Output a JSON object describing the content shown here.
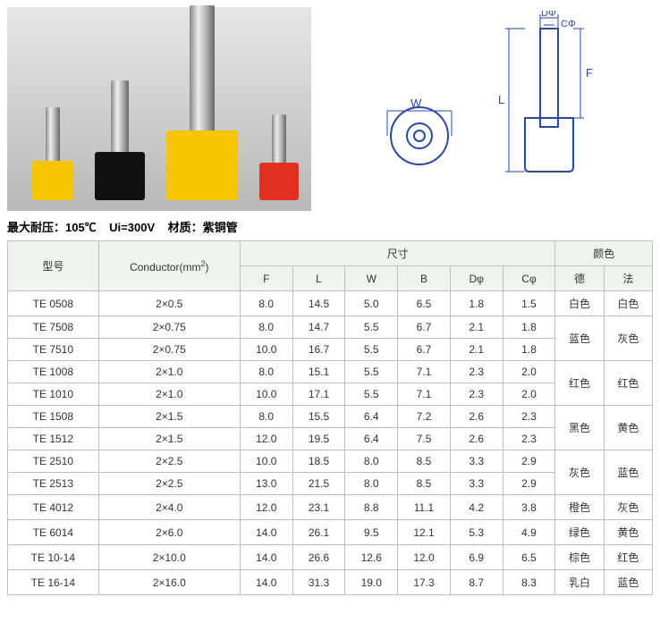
{
  "caption_parts": {
    "p1": "最大耐压：105℃",
    "p2": "Ui=300V",
    "p3": "材质：紫铜管"
  },
  "headers": {
    "model": "型号",
    "conductor_label": "Conductor(mm",
    "conductor_sup": "2",
    "conductor_close": ")",
    "dimensions": "尺寸",
    "color": "颜色",
    "F": "F",
    "L": "L",
    "W": "W",
    "B": "B",
    "Dphi": "Dφ",
    "Cphi": "Cφ",
    "de": "德",
    "fa": "法"
  },
  "diagram_labels": {
    "W": "W",
    "L": "L",
    "F": "F",
    "Dphi": "DΦ",
    "Cphi": "CΦ"
  },
  "rows": [
    {
      "model": "TE 0508",
      "cond": "2×0.5",
      "F": "8.0",
      "L": "14.5",
      "W": "5.0",
      "B": "6.5",
      "D": "1.8",
      "C": "1.5"
    },
    {
      "model": "TE 7508",
      "cond": "2×0.75",
      "F": "8.0",
      "L": "14.7",
      "W": "5.5",
      "B": "6.7",
      "D": "2.1",
      "C": "1.8"
    },
    {
      "model": "TE 7510",
      "cond": "2×0.75",
      "F": "10.0",
      "L": "16.7",
      "W": "5.5",
      "B": "6.7",
      "D": "2.1",
      "C": "1.8"
    },
    {
      "model": "TE 1008",
      "cond": "2×1.0",
      "F": "8.0",
      "L": "15.1",
      "W": "5.5",
      "B": "7.1",
      "D": "2.3",
      "C": "2.0"
    },
    {
      "model": "TE 1010",
      "cond": "2×1.0",
      "F": "10.0",
      "L": "17.1",
      "W": "5.5",
      "B": "7.1",
      "D": "2.3",
      "C": "2.0"
    },
    {
      "model": "TE 1508",
      "cond": "2×1.5",
      "F": "8.0",
      "L": "15.5",
      "W": "6.4",
      "B": "7.2",
      "D": "2.6",
      "C": "2.3"
    },
    {
      "model": "TE 1512",
      "cond": "2×1.5",
      "F": "12.0",
      "L": "19.5",
      "W": "6.4",
      "B": "7.5",
      "D": "2.6",
      "C": "2.3"
    },
    {
      "model": "TE 2510",
      "cond": "2×2.5",
      "F": "10.0",
      "L": "18.5",
      "W": "8.0",
      "B": "8.5",
      "D": "3.3",
      "C": "2.9"
    },
    {
      "model": "TE 2513",
      "cond": "2×2.5",
      "F": "13.0",
      "L": "21.5",
      "W": "8.0",
      "B": "8.5",
      "D": "3.3",
      "C": "2.9"
    },
    {
      "model": "TE 4012",
      "cond": "2×4.0",
      "F": "12.0",
      "L": "23.1",
      "W": "8.8",
      "B": "11.1",
      "D": "4.2",
      "C": "3.8"
    },
    {
      "model": "TE 6014",
      "cond": "2×6.0",
      "F": "14.0",
      "L": "26.1",
      "W": "9.5",
      "B": "12.1",
      "D": "5.3",
      "C": "4.9"
    },
    {
      "model": "TE 10-14",
      "cond": "2×10.0",
      "F": "14.0",
      "L": "26.6",
      "W": "12.6",
      "B": "12.0",
      "D": "6.9",
      "C": "6.5"
    },
    {
      "model": "TE 16-14",
      "cond": "2×16.0",
      "F": "14.0",
      "L": "31.3",
      "W": "19.0",
      "B": "17.3",
      "D": "8.7",
      "C": "8.3"
    }
  ],
  "color_groups": [
    {
      "span": 1,
      "de": "白色",
      "fa": "白色"
    },
    {
      "span": 2,
      "de": "蓝色",
      "fa": "灰色"
    },
    {
      "span": 2,
      "de": "红色",
      "fa": "红色"
    },
    {
      "span": 2,
      "de": "黑色",
      "fa": "黄色"
    },
    {
      "span": 2,
      "de": "灰色",
      "fa": "蓝色"
    },
    {
      "span": 1,
      "de": "橙色",
      "fa": "灰色"
    },
    {
      "span": 1,
      "de": "绿色",
      "fa": "黄色"
    },
    {
      "span": 1,
      "de": "棕色",
      "fa": "红色"
    },
    {
      "span": 1,
      "de": "乳白",
      "fa": "蓝色"
    }
  ]
}
